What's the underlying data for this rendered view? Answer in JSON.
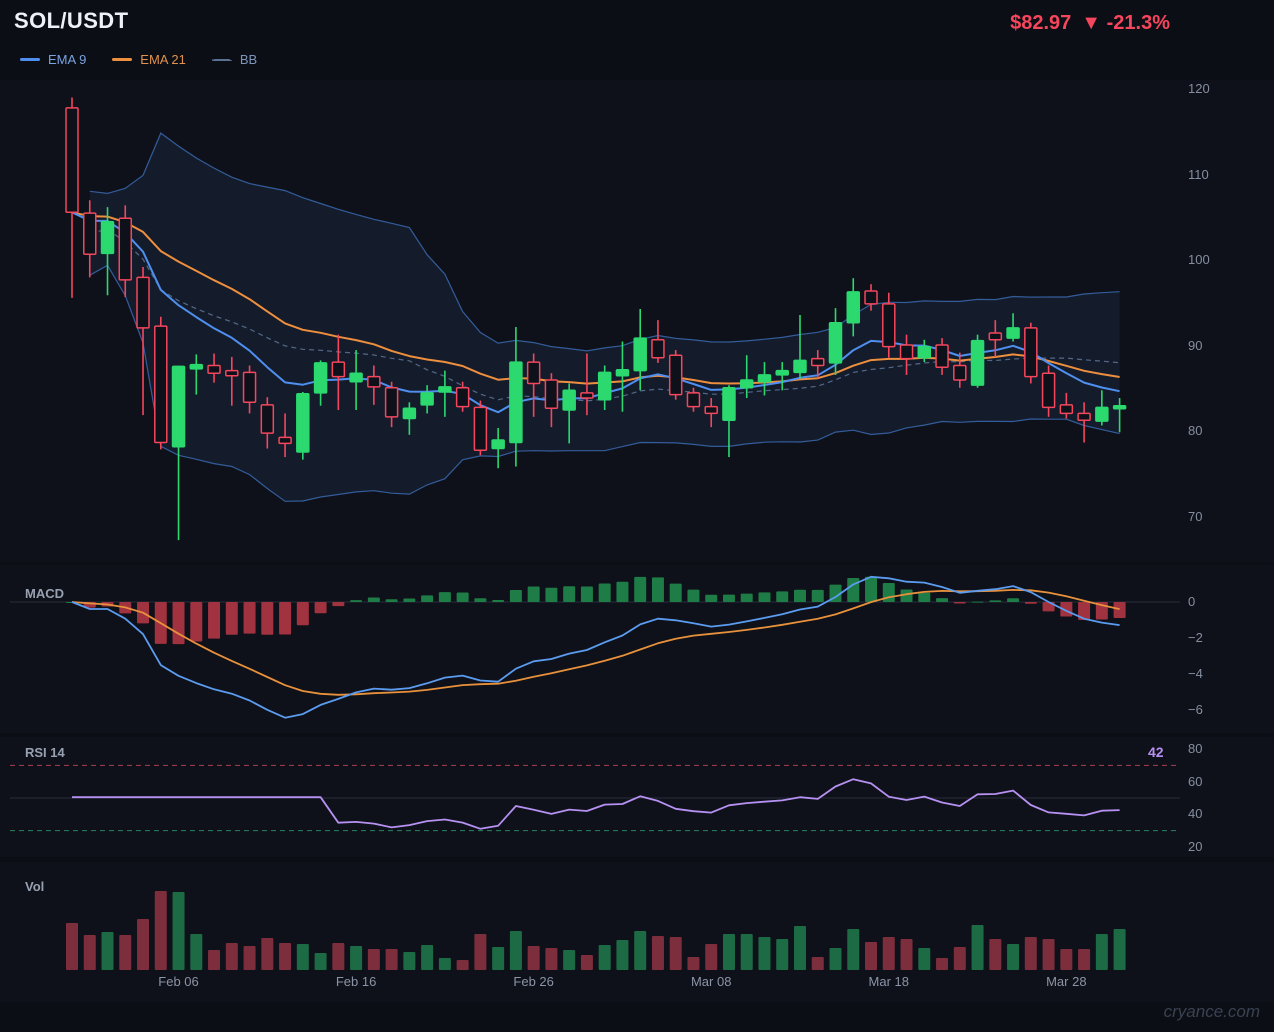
{
  "header": {
    "title": "SOL/USDT",
    "price": "$82.97",
    "direction_icon": "▼",
    "change": "-21.3%",
    "price_color": "#f6465d"
  },
  "legend": {
    "items": [
      {
        "label": "EMA 9",
        "color": "#4f8ff0",
        "label_color": "#7aa3e0",
        "style": "solid"
      },
      {
        "label": "EMA 21",
        "color": "#ee8f3f",
        "label_color": "#e0924e",
        "style": "solid"
      },
      {
        "label": "BB",
        "color": "#5a7194",
        "label_color": "#7d95bd",
        "style": "dashed"
      }
    ]
  },
  "panels": {
    "price": {
      "yticks": [
        120,
        110,
        100,
        90,
        80,
        70
      ]
    },
    "macd": {
      "label": "MACD",
      "yticks": [
        0,
        -2,
        -4,
        -6
      ]
    },
    "rsi": {
      "label": "RSI 14",
      "value": "42",
      "yticks": [
        80,
        60,
        40,
        20
      ],
      "overbought": 70,
      "midline": 50,
      "oversold": 30
    },
    "vol": {
      "label": "Vol"
    }
  },
  "watermark": "cryance.com",
  "colors": {
    "up": "#2bd96e",
    "down": "#f4465d",
    "panel_bg": "#0e1119",
    "ema_fast": "#4f8ff0",
    "ema_slow": "#ee8f3f",
    "bb_line": "#3a68b0",
    "bb_fill": "rgba(79,127,204,0.10)",
    "bb_mid": "#5a7194",
    "macd_line": "#5b9cf0",
    "macd_signal": "#e8913c",
    "hist_up": "#1e7c46",
    "hist_down": "#a1323f",
    "rsi_line": "#b691f2",
    "rsi_upper": "#bb4458",
    "rsi_lower": "#2c9069",
    "gridline": "#262d3b",
    "vol_up": "#1d6b44",
    "vol_down": "#7c2e3c"
  },
  "chart_data": {
    "type": "candlestick",
    "symbol": "SOL/USDT",
    "ylim": [
      70,
      120
    ],
    "x_labels": [
      {
        "index": 6,
        "label": "Feb 06"
      },
      {
        "index": 16,
        "label": "Feb 16"
      },
      {
        "index": 26,
        "label": "Feb 26"
      },
      {
        "index": 36,
        "label": "Mar 08"
      },
      {
        "index": 46,
        "label": "Mar 18"
      },
      {
        "index": 56,
        "label": "Mar 28"
      }
    ],
    "indicators": {
      "ema_fast": 9,
      "ema_slow": 21,
      "bollinger": {
        "period": 20,
        "stddev": 2
      },
      "macd": {
        "fast": 12,
        "slow": 26,
        "signal": 9
      },
      "rsi": {
        "period": 14,
        "last_value": 42
      }
    },
    "candles": [
      [
        117.8,
        119.0,
        95.6,
        105.6
      ],
      [
        105.5,
        107.0,
        98.0,
        100.7
      ],
      [
        100.8,
        106.2,
        95.9,
        104.5
      ],
      [
        104.9,
        106.4,
        95.7,
        97.7
      ],
      [
        98.0,
        99.2,
        81.9,
        92.1
      ],
      [
        92.3,
        93.4,
        77.9,
        78.7
      ],
      [
        78.2,
        87.7,
        67.3,
        87.6
      ],
      [
        87.3,
        89.0,
        84.3,
        87.8
      ],
      [
        87.7,
        89.1,
        85.7,
        86.8
      ],
      [
        87.1,
        88.7,
        83.0,
        86.5
      ],
      [
        86.9,
        87.7,
        82.1,
        83.4
      ],
      [
        83.1,
        84.0,
        78.0,
        79.8
      ],
      [
        79.3,
        82.1,
        77.0,
        78.6
      ],
      [
        77.6,
        84.6,
        76.7,
        84.4
      ],
      [
        84.5,
        88.3,
        83.0,
        88.0
      ],
      [
        88.1,
        91.3,
        82.5,
        86.4
      ],
      [
        85.8,
        89.5,
        82.5,
        86.8
      ],
      [
        86.4,
        87.7,
        83.1,
        85.2
      ],
      [
        85.1,
        85.8,
        80.5,
        81.7
      ],
      [
        81.5,
        83.4,
        79.6,
        82.7
      ],
      [
        83.1,
        85.4,
        82.1,
        84.5
      ],
      [
        84.6,
        87.1,
        81.7,
        85.2
      ],
      [
        85.1,
        85.8,
        82.3,
        82.9
      ],
      [
        82.8,
        83.6,
        77.2,
        77.8
      ],
      [
        78.0,
        80.4,
        75.7,
        79.0
      ],
      [
        78.7,
        92.2,
        75.9,
        88.1
      ],
      [
        88.1,
        89.1,
        81.7,
        85.6
      ],
      [
        86.0,
        86.8,
        80.5,
        82.7
      ],
      [
        82.5,
        85.6,
        78.6,
        84.8
      ],
      [
        84.5,
        89.1,
        81.9,
        83.9
      ],
      [
        83.7,
        87.7,
        82.5,
        86.9
      ],
      [
        86.5,
        90.5,
        82.3,
        87.2
      ],
      [
        87.1,
        94.3,
        84.8,
        90.9
      ],
      [
        90.7,
        93.0,
        88.0,
        88.6
      ],
      [
        88.9,
        89.5,
        83.7,
        84.3
      ],
      [
        84.5,
        85.1,
        82.3,
        82.9
      ],
      [
        82.9,
        83.9,
        80.5,
        82.1
      ],
      [
        81.3,
        85.4,
        77.0,
        85.1
      ],
      [
        85.1,
        88.9,
        83.9,
        86.0
      ],
      [
        85.8,
        88.1,
        84.2,
        86.6
      ],
      [
        86.6,
        88.1,
        84.8,
        87.1
      ],
      [
        86.9,
        93.6,
        86.2,
        88.3
      ],
      [
        88.5,
        89.5,
        86.2,
        87.7
      ],
      [
        88.0,
        94.4,
        86.6,
        92.7
      ],
      [
        92.7,
        97.9,
        91.1,
        96.3
      ],
      [
        96.4,
        97.2,
        94.1,
        94.9
      ],
      [
        94.9,
        96.2,
        88.6,
        89.9
      ],
      [
        90.1,
        91.3,
        86.6,
        88.5
      ],
      [
        88.6,
        90.7,
        88.1,
        89.9
      ],
      [
        90.1,
        90.9,
        86.6,
        87.5
      ],
      [
        87.7,
        89.2,
        85.1,
        86.0
      ],
      [
        85.4,
        91.3,
        85.1,
        90.6
      ],
      [
        91.5,
        93.0,
        88.7,
        90.7
      ],
      [
        90.9,
        93.8,
        90.5,
        92.1
      ],
      [
        92.1,
        92.7,
        85.6,
        86.4
      ],
      [
        86.8,
        87.7,
        81.7,
        82.8
      ],
      [
        83.1,
        84.5,
        81.5,
        82.1
      ],
      [
        82.1,
        83.4,
        78.7,
        81.3
      ],
      [
        81.2,
        84.8,
        80.7,
        82.8
      ],
      [
        82.8,
        83.9,
        79.9,
        83.0
      ]
    ],
    "volumes": [
      47,
      35,
      38,
      35,
      51,
      79,
      78,
      36,
      20,
      27,
      24,
      32,
      27,
      26,
      17,
      27,
      24,
      21,
      21,
      18,
      25,
      12,
      10,
      36,
      23,
      39,
      24,
      22,
      20,
      15,
      25,
      30,
      39,
      34,
      33,
      13,
      26,
      36,
      36,
      33,
      31,
      44,
      13,
      22,
      41,
      28,
      33,
      31,
      22,
      12,
      23,
      45,
      31,
      26,
      33,
      31,
      21,
      21,
      36,
      41
    ]
  }
}
